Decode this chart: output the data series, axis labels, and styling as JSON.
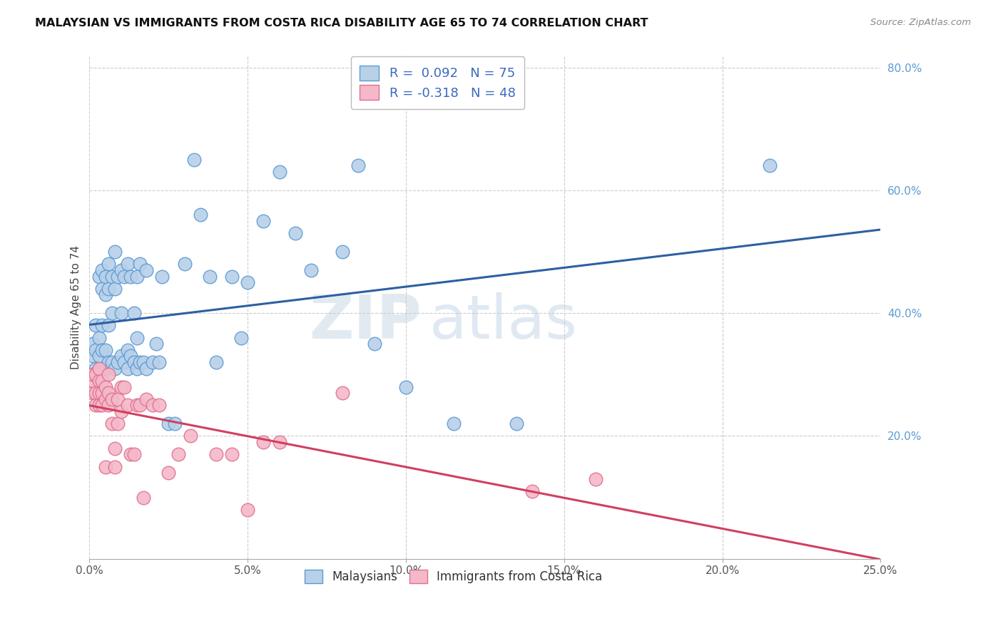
{
  "title": "MALAYSIAN VS IMMIGRANTS FROM COSTA RICA DISABILITY AGE 65 TO 74 CORRELATION CHART",
  "source": "Source: ZipAtlas.com",
  "ylabel": "Disability Age 65 to 74",
  "x_min": 0.0,
  "x_max": 0.25,
  "y_min": 0.0,
  "y_max": 0.82,
  "x_ticks": [
    0.0,
    0.05,
    0.1,
    0.15,
    0.2,
    0.25
  ],
  "x_tick_labels": [
    "0.0%",
    "5.0%",
    "10.0%",
    "15.0%",
    "20.0%",
    "25.0%"
  ],
  "y_ticks": [
    0.2,
    0.4,
    0.6,
    0.8
  ],
  "y_tick_labels": [
    "20.0%",
    "40.0%",
    "60.0%",
    "80.0%"
  ],
  "blue_color": "#b8d0e8",
  "blue_edge_color": "#5b9bd5",
  "pink_color": "#f4b8c8",
  "pink_edge_color": "#e07090",
  "trend_blue": "#2e5fa3",
  "trend_pink": "#d04060",
  "R_blue": 0.092,
  "N_blue": 75,
  "R_pink": -0.318,
  "N_pink": 48,
  "watermark": "ZIPatlas",
  "legend_label_blue": "Malaysians",
  "legend_label_pink": "Immigrants from Costa Rica",
  "blue_x": [
    0.001,
    0.001,
    0.002,
    0.002,
    0.002,
    0.003,
    0.003,
    0.003,
    0.003,
    0.004,
    0.004,
    0.004,
    0.004,
    0.004,
    0.005,
    0.005,
    0.005,
    0.005,
    0.006,
    0.006,
    0.006,
    0.006,
    0.007,
    0.007,
    0.007,
    0.008,
    0.008,
    0.008,
    0.009,
    0.009,
    0.01,
    0.01,
    0.01,
    0.011,
    0.011,
    0.012,
    0.012,
    0.012,
    0.013,
    0.013,
    0.014,
    0.014,
    0.015,
    0.015,
    0.015,
    0.016,
    0.016,
    0.017,
    0.018,
    0.018,
    0.02,
    0.021,
    0.022,
    0.023,
    0.025,
    0.027,
    0.03,
    0.033,
    0.035,
    0.038,
    0.04,
    0.045,
    0.048,
    0.05,
    0.055,
    0.06,
    0.065,
    0.07,
    0.08,
    0.085,
    0.09,
    0.1,
    0.115,
    0.135,
    0.215
  ],
  "blue_y": [
    0.33,
    0.35,
    0.31,
    0.34,
    0.38,
    0.31,
    0.33,
    0.36,
    0.46,
    0.31,
    0.34,
    0.38,
    0.44,
    0.47,
    0.31,
    0.34,
    0.43,
    0.46,
    0.32,
    0.38,
    0.44,
    0.48,
    0.32,
    0.4,
    0.46,
    0.31,
    0.44,
    0.5,
    0.32,
    0.46,
    0.33,
    0.4,
    0.47,
    0.32,
    0.46,
    0.31,
    0.34,
    0.48,
    0.33,
    0.46,
    0.32,
    0.4,
    0.31,
    0.36,
    0.46,
    0.32,
    0.48,
    0.32,
    0.31,
    0.47,
    0.32,
    0.35,
    0.32,
    0.46,
    0.22,
    0.22,
    0.48,
    0.65,
    0.56,
    0.46,
    0.32,
    0.46,
    0.36,
    0.45,
    0.55,
    0.63,
    0.53,
    0.47,
    0.5,
    0.64,
    0.35,
    0.28,
    0.22,
    0.22,
    0.64
  ],
  "pink_x": [
    0.001,
    0.001,
    0.001,
    0.002,
    0.002,
    0.002,
    0.003,
    0.003,
    0.003,
    0.003,
    0.004,
    0.004,
    0.004,
    0.005,
    0.005,
    0.005,
    0.006,
    0.006,
    0.006,
    0.007,
    0.007,
    0.008,
    0.008,
    0.009,
    0.009,
    0.01,
    0.01,
    0.011,
    0.012,
    0.013,
    0.014,
    0.015,
    0.016,
    0.017,
    0.018,
    0.02,
    0.022,
    0.025,
    0.028,
    0.032,
    0.04,
    0.045,
    0.05,
    0.055,
    0.06,
    0.08,
    0.14,
    0.16
  ],
  "pink_y": [
    0.27,
    0.29,
    0.3,
    0.25,
    0.27,
    0.3,
    0.25,
    0.27,
    0.29,
    0.31,
    0.25,
    0.27,
    0.29,
    0.15,
    0.26,
    0.28,
    0.25,
    0.27,
    0.3,
    0.22,
    0.26,
    0.15,
    0.18,
    0.22,
    0.26,
    0.24,
    0.28,
    0.28,
    0.25,
    0.17,
    0.17,
    0.25,
    0.25,
    0.1,
    0.26,
    0.25,
    0.25,
    0.14,
    0.17,
    0.2,
    0.17,
    0.17,
    0.08,
    0.19,
    0.19,
    0.27,
    0.11,
    0.13
  ]
}
